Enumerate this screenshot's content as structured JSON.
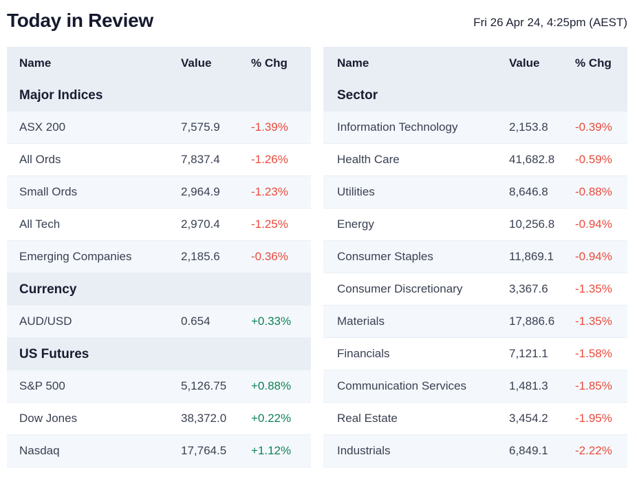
{
  "page": {
    "title": "Today in Review",
    "timestamp": "Fri 26 Apr 24, 4:25pm (AEST)"
  },
  "colors": {
    "negative": "#e94a3c",
    "positive": "#0f8156",
    "header_bg": "#e9eef5",
    "stripe_bg": "#f4f8fc"
  },
  "tables": {
    "left": {
      "columns": [
        "Name",
        "Value",
        "% Chg"
      ],
      "rows": [
        {
          "type": "section",
          "name": "Major Indices"
        },
        {
          "type": "data",
          "name": "ASX 200",
          "value": "7,575.9",
          "chg": "-1.39%",
          "dir": "down"
        },
        {
          "type": "data",
          "name": "All Ords",
          "value": "7,837.4",
          "chg": "-1.26%",
          "dir": "down"
        },
        {
          "type": "data",
          "name": "Small Ords",
          "value": "2,964.9",
          "chg": "-1.23%",
          "dir": "down"
        },
        {
          "type": "data",
          "name": "All Tech",
          "value": "2,970.4",
          "chg": "-1.25%",
          "dir": "down"
        },
        {
          "type": "data",
          "name": "Emerging Companies",
          "value": "2,185.6",
          "chg": "-0.36%",
          "dir": "down"
        },
        {
          "type": "section",
          "name": "Currency"
        },
        {
          "type": "data",
          "name": "AUD/USD",
          "value": "0.654",
          "chg": "+0.33%",
          "dir": "up"
        },
        {
          "type": "section",
          "name": "US Futures"
        },
        {
          "type": "data",
          "name": "S&P 500",
          "value": "5,126.75",
          "chg": "+0.88%",
          "dir": "up"
        },
        {
          "type": "data",
          "name": "Dow Jones",
          "value": "38,372.0",
          "chg": "+0.22%",
          "dir": "up"
        },
        {
          "type": "data",
          "name": "Nasdaq",
          "value": "17,764.5",
          "chg": "+1.12%",
          "dir": "up"
        }
      ]
    },
    "right": {
      "columns": [
        "Name",
        "Value",
        "% Chg"
      ],
      "rows": [
        {
          "type": "section",
          "name": "Sector"
        },
        {
          "type": "data",
          "name": "Information Technology",
          "value": "2,153.8",
          "chg": "-0.39%",
          "dir": "down"
        },
        {
          "type": "data",
          "name": "Health Care",
          "value": "41,682.8",
          "chg": "-0.59%",
          "dir": "down"
        },
        {
          "type": "data",
          "name": "Utilities",
          "value": "8,646.8",
          "chg": "-0.88%",
          "dir": "down"
        },
        {
          "type": "data",
          "name": "Energy",
          "value": "10,256.8",
          "chg": "-0.94%",
          "dir": "down"
        },
        {
          "type": "data",
          "name": "Consumer Staples",
          "value": "11,869.1",
          "chg": "-0.94%",
          "dir": "down"
        },
        {
          "type": "data",
          "name": "Consumer Discretionary",
          "value": "3,367.6",
          "chg": "-1.35%",
          "dir": "down"
        },
        {
          "type": "data",
          "name": "Materials",
          "value": "17,886.6",
          "chg": "-1.35%",
          "dir": "down"
        },
        {
          "type": "data",
          "name": "Financials",
          "value": "7,121.1",
          "chg": "-1.58%",
          "dir": "down"
        },
        {
          "type": "data",
          "name": "Communication Services",
          "value": "1,481.3",
          "chg": "-1.85%",
          "dir": "down"
        },
        {
          "type": "data",
          "name": "Real Estate",
          "value": "3,454.2",
          "chg": "-1.95%",
          "dir": "down"
        },
        {
          "type": "data",
          "name": "Industrials",
          "value": "6,849.1",
          "chg": "-2.22%",
          "dir": "down"
        }
      ]
    }
  }
}
